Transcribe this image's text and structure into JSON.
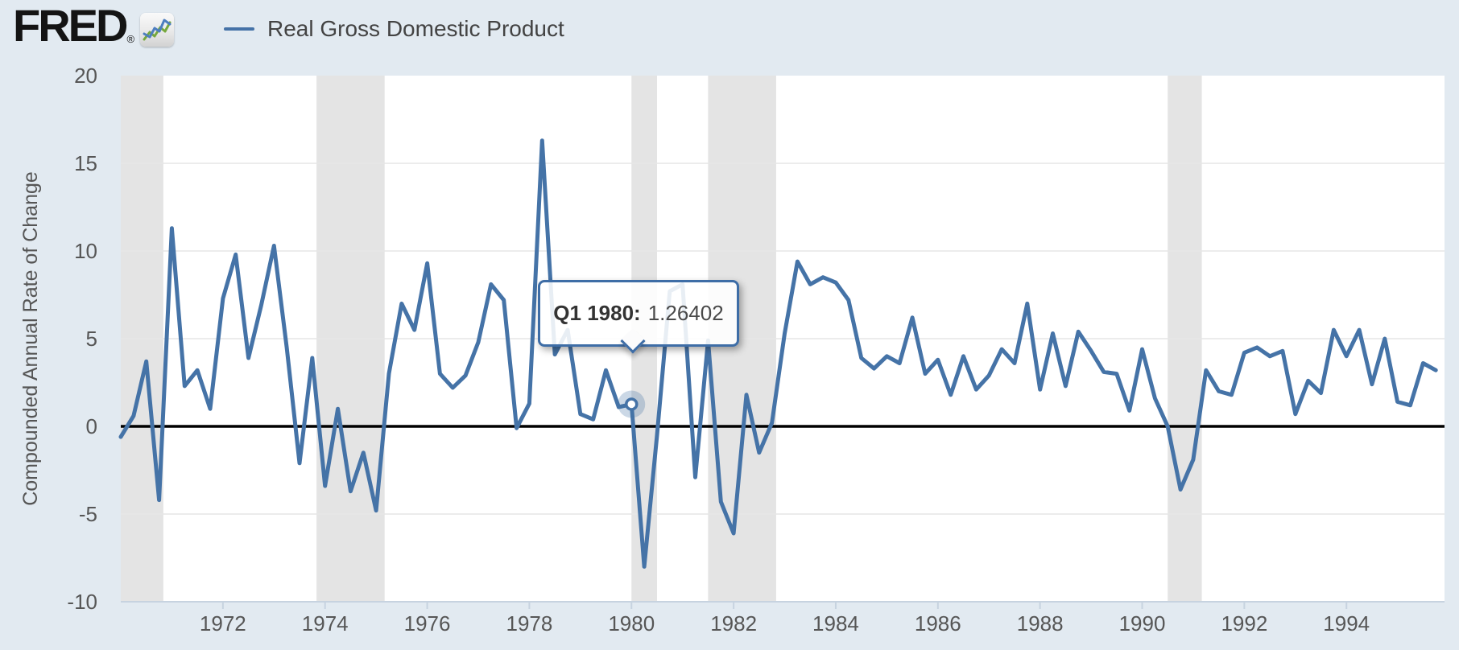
{
  "header": {
    "logo_text": "FRED",
    "registered_mark": "®",
    "logo_chart_icon": "fred-line-chart-icon",
    "legend": {
      "series_label": "Real Gross Domestic Product",
      "swatch_color": "#4572a7"
    }
  },
  "y_axis": {
    "title": "Compounded Annual Rate of Change",
    "tick_labels": [
      "20",
      "15",
      "10",
      "5",
      "0",
      "-5",
      "-10"
    ],
    "tick_values": [
      20,
      15,
      10,
      5,
      0,
      -5,
      -10
    ]
  },
  "x_axis": {
    "tick_labels": [
      "1972",
      "1974",
      "1976",
      "1978",
      "1980",
      "1982",
      "1984",
      "1986",
      "1988",
      "1990",
      "1992",
      "1994"
    ],
    "tick_values": [
      1972,
      1974,
      1976,
      1978,
      1980,
      1982,
      1984,
      1986,
      1988,
      1990,
      1992,
      1994
    ]
  },
  "tooltip": {
    "label": "Q1 1980:",
    "value": "1.26402",
    "point_index": 40
  },
  "chart_data": {
    "type": "line",
    "title": "",
    "xlabel": "",
    "ylabel": "Compounded Annual Rate of Change",
    "x_start_year": 1970,
    "frequency": "quarterly",
    "x_range": [
      1970.0,
      1995.92
    ],
    "ylim": [
      -10,
      20
    ],
    "grid": true,
    "zero_line": true,
    "legend_position": "top-left",
    "series": [
      {
        "name": "Real Gross Domestic Product",
        "color": "#4573a7",
        "values": [
          -0.6,
          0.6,
          3.7,
          -4.2,
          11.3,
          2.3,
          3.2,
          1.0,
          7.3,
          9.8,
          3.9,
          6.9,
          10.3,
          4.5,
          -2.1,
          3.9,
          -3.4,
          1.0,
          -3.7,
          -1.5,
          -4.8,
          3.0,
          7.0,
          5.5,
          9.3,
          3.0,
          2.2,
          2.9,
          4.8,
          8.1,
          7.2,
          -0.1,
          1.3,
          16.3,
          4.1,
          5.5,
          0.7,
          0.4,
          3.2,
          1.1,
          1.26402,
          -8.0,
          -0.5,
          7.7,
          8.1,
          -2.9,
          4.9,
          -4.3,
          -6.1,
          1.8,
          -1.5,
          0.2,
          5.3,
          9.4,
          8.1,
          8.5,
          8.2,
          7.2,
          3.9,
          3.3,
          4.0,
          3.6,
          6.2,
          3.0,
          3.8,
          1.8,
          4.0,
          2.1,
          2.9,
          4.4,
          3.6,
          7.0,
          2.1,
          5.3,
          2.3,
          5.4,
          4.3,
          3.1,
          3.0,
          0.9,
          4.4,
          1.6,
          0.0,
          -3.6,
          -1.9,
          3.2,
          2.0,
          1.8,
          4.2,
          4.5,
          4.0,
          4.3,
          0.7,
          2.6,
          1.9,
          5.5,
          4.0,
          5.5,
          2.4,
          5.0,
          1.4,
          1.2,
          3.6,
          3.2
        ]
      }
    ],
    "recession_bands": [
      {
        "start": 1970.0,
        "end": 1970.833
      },
      {
        "start": 1973.833,
        "end": 1975.167
      },
      {
        "start": 1980.0,
        "end": 1980.5
      },
      {
        "start": 1981.5,
        "end": 1982.833
      },
      {
        "start": 1990.5,
        "end": 1991.167
      }
    ],
    "colors": {
      "page_background": "#e2eaf1",
      "plot_background": "#ffffff",
      "recession_band": "#e4e4e4",
      "gridline": "#e6e6e6",
      "zero_line": "#000000",
      "axis_line": "#c7d3e0",
      "tick_text": "#565656",
      "series_line": "#4573a7",
      "marker_halo": "rgba(69,114,167,0.28)",
      "tooltip_border": "#3e6da6"
    }
  }
}
